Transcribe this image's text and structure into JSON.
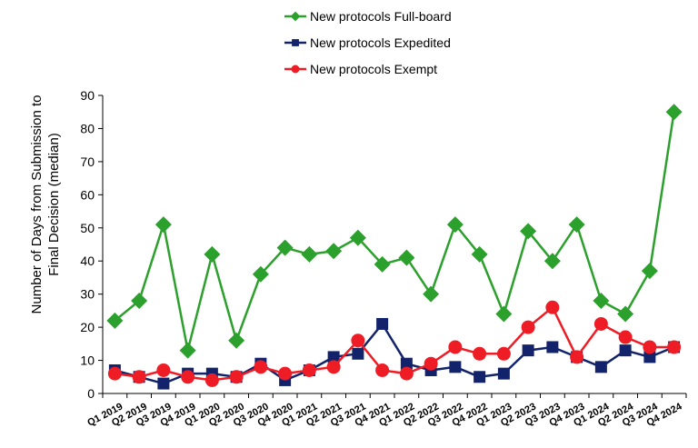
{
  "chart_data": {
    "type": "line",
    "title": "",
    "xlabel": "",
    "ylabel": "Number of Days from Submission to Final Decision (median)",
    "ylabel_lines": [
      "Number of Days from Submission to",
      "Final Decision (median)"
    ],
    "ylim": [
      0,
      90
    ],
    "yticks": [
      0,
      10,
      20,
      30,
      40,
      50,
      60,
      70,
      80,
      90
    ],
    "grid": false,
    "legend": "top-center",
    "categories": [
      "Q1 2019",
      "Q2 2019",
      "Q3 2019",
      "Q4 2019",
      "Q1 2020",
      "Q2 2020",
      "Q3 2020",
      "Q4 2020",
      "Q1 2021",
      "Q2 2021",
      "Q3 2021",
      "Q4 2021",
      "Q1 2022",
      "Q2 2022",
      "Q3 2022",
      "Q4 2022",
      "Q1 2023",
      "Q2 2023",
      "Q3 2023",
      "Q4 2023",
      "Q1 2024",
      "Q2 2024",
      "Q3 2024",
      "Q4 2024"
    ],
    "series": [
      {
        "name": "New protocols Full-board",
        "color": "#2ca02c",
        "marker": "diamond",
        "values": [
          22,
          28,
          51,
          13,
          42,
          16,
          36,
          44,
          42,
          43,
          47,
          39,
          41,
          30,
          51,
          42,
          24,
          49,
          40,
          51,
          28,
          24,
          37,
          85
        ]
      },
      {
        "name": "New protocols Expedited",
        "color": "#12236b",
        "marker": "square",
        "values": [
          7,
          5,
          3,
          6,
          6,
          5,
          9,
          4,
          7,
          11,
          12,
          21,
          9,
          7,
          8,
          5,
          6,
          13,
          14,
          11,
          8,
          13,
          11,
          14
        ]
      },
      {
        "name": "New protocols Exempt",
        "color": "#ee1c25",
        "marker": "circle",
        "values": [
          6,
          5,
          7,
          5,
          4,
          5,
          8,
          6,
          7,
          8,
          16,
          7,
          6,
          9,
          14,
          12,
          12,
          20,
          26,
          11,
          21,
          17,
          14,
          14
        ]
      }
    ]
  }
}
